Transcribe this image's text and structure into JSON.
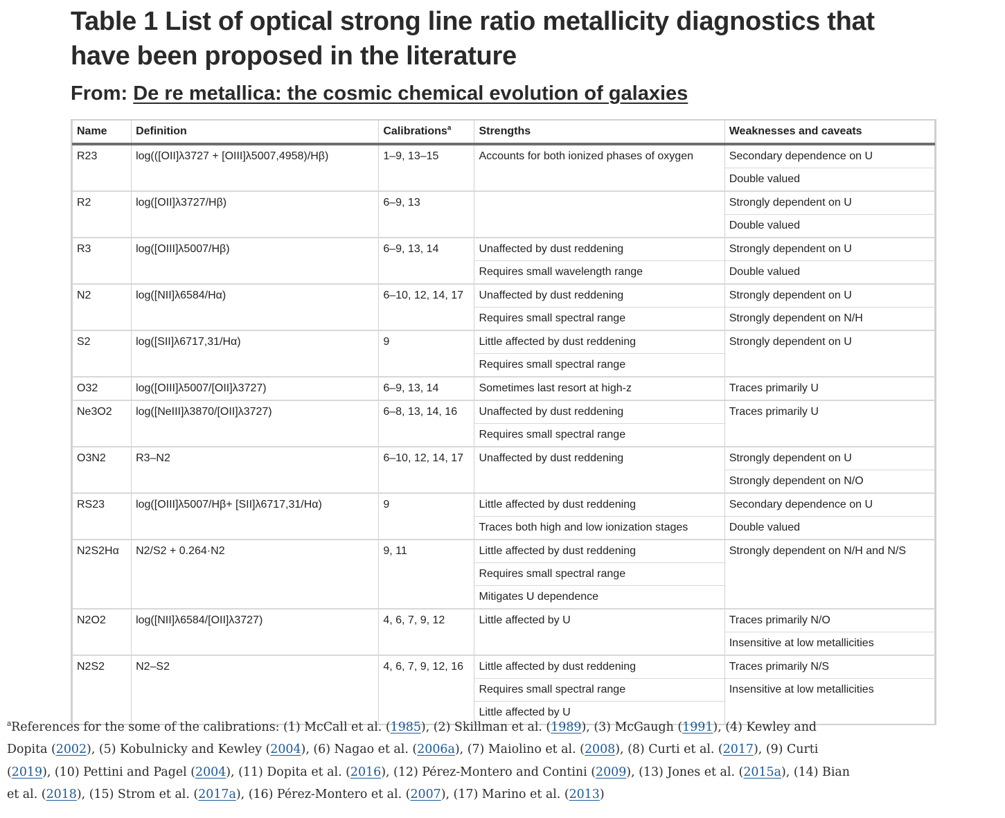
{
  "title": "Table 1 List of optical strong line ratio metallicity diagnostics that have been proposed in the literature",
  "from_label": "From:",
  "from_link": "De re metallica: the cosmic chemical evolution of galaxies",
  "columns": [
    "Name",
    "Definition",
    "Calibrations",
    "Strengths",
    "Weaknesses and caveats"
  ],
  "calibrations_marker": "a",
  "rows": [
    {
      "name": "R23",
      "definition": "log(([OII]λ3727 + [OIII]λ5007,4958)/Hβ)",
      "calibrations": "1–9, 13–15",
      "strengths": [
        "Accounts for both ionized phases of oxygen"
      ],
      "weaknesses": [
        "Secondary dependence on U",
        "Double valued"
      ]
    },
    {
      "name": "R2",
      "definition": "log([OII]λ3727/Hβ)",
      "calibrations": "6–9, 13",
      "strengths": [],
      "weaknesses": [
        "Strongly dependent on U",
        "Double valued"
      ]
    },
    {
      "name": "R3",
      "definition": "log([OIII]λ5007/Hβ)",
      "calibrations": "6–9, 13, 14",
      "strengths": [
        "Unaffected by dust reddening",
        "Requires small wavelength range"
      ],
      "weaknesses": [
        "Strongly dependent on U",
        "Double valued"
      ]
    },
    {
      "name": "N2",
      "definition": "log([NII]λ6584/Hα)",
      "calibrations": "6–10, 12, 14, 17",
      "strengths": [
        "Unaffected by dust reddening",
        "Requires small spectral range"
      ],
      "weaknesses": [
        "Strongly dependent on U",
        "Strongly dependent on N/H"
      ]
    },
    {
      "name": "S2",
      "definition": "log([SII]λ6717,31/Hα)",
      "calibrations": "9",
      "strengths": [
        "Little affected by dust reddening",
        "Requires small spectral range"
      ],
      "weaknesses": [
        "Strongly dependent on U"
      ]
    },
    {
      "name": "O32",
      "definition": "log([OIII]λ5007/[OII]λ3727)",
      "calibrations": "6–9, 13, 14",
      "strengths": [
        "Sometimes last resort at high-z"
      ],
      "weaknesses": [
        "Traces primarily U"
      ]
    },
    {
      "name": "Ne3O2",
      "definition": "log([NeIII]λ3870/[OII]λ3727)",
      "calibrations": "6–8, 13, 14, 16",
      "strengths": [
        "Unaffected by dust reddening",
        "Requires small spectral range"
      ],
      "weaknesses": [
        "Traces primarily U"
      ]
    },
    {
      "name": "O3N2",
      "definition": "R3–N2",
      "calibrations": "6–10, 12, 14, 17",
      "strengths": [
        "Unaffected by dust reddening"
      ],
      "weaknesses": [
        "Strongly dependent on U",
        "Strongly dependent on N/O"
      ]
    },
    {
      "name": "RS23",
      "definition": "log([OIII]λ5007/Hβ+ [SII]λ6717,31/Hα)",
      "calibrations": "9",
      "strengths": [
        "Little affected by dust reddening",
        "Traces both high and low ionization stages"
      ],
      "weaknesses": [
        "Secondary dependence on U",
        "Double valued"
      ]
    },
    {
      "name": "N2S2Hα",
      "definition": "N2/S2 + 0.264·N2",
      "calibrations": "9, 11",
      "strengths": [
        "Little affected by dust reddening",
        "Requires small spectral range",
        "Mitigates U dependence"
      ],
      "weaknesses": [
        "Strongly dependent on N/H and N/S"
      ]
    },
    {
      "name": "N2O2",
      "definition": "log([NII]λ6584/[OII]λ3727)",
      "calibrations": "4, 6, 7, 9, 12",
      "strengths": [
        "Little affected by U"
      ],
      "weaknesses": [
        "Traces primarily N/O",
        "Insensitive at low metallicities"
      ]
    },
    {
      "name": "N2S2",
      "definition": "N2–S2",
      "calibrations": "4, 6, 7, 9, 12, 16",
      "strengths": [
        "Little affected by dust reddening",
        "Requires small spectral range",
        "Little affected by U"
      ],
      "weaknesses": [
        "Traces primarily N/S",
        "Insensitive at low metallicities"
      ]
    }
  ],
  "footnote": {
    "marker": "a",
    "intro": "References for the some of the calibrations: ",
    "refs": [
      {
        "num": "(1)",
        "authors": "McCall et al.",
        "year": "1985"
      },
      {
        "num": "(2)",
        "authors": "Skillman et al.",
        "year": "1989"
      },
      {
        "num": "(3)",
        "authors": "McGaugh",
        "year": "1991"
      },
      {
        "num": "(4)",
        "authors": "Kewley and Dopita",
        "year": "2002"
      },
      {
        "num": "(5)",
        "authors": "Kobulnicky and Kewley",
        "year": "2004"
      },
      {
        "num": "(6)",
        "authors": "Nagao et al.",
        "year": "2006a"
      },
      {
        "num": "(7)",
        "authors": "Maiolino et al.",
        "year": "2008"
      },
      {
        "num": "(8)",
        "authors": "Curti et al.",
        "year": "2017"
      },
      {
        "num": "(9)",
        "authors": "Curti",
        "year": "2019"
      },
      {
        "num": "(10)",
        "authors": "Pettini and Pagel",
        "year": "2004"
      },
      {
        "num": "(11)",
        "authors": "Dopita et al.",
        "year": "2016"
      },
      {
        "num": "(12)",
        "authors": "Pérez-Montero and Contini",
        "year": "2009"
      },
      {
        "num": "(13)",
        "authors": "Jones et al.",
        "year": "2015a"
      },
      {
        "num": "(14)",
        "authors": "Bian et al.",
        "year": "2018"
      },
      {
        "num": "(15)",
        "authors": "Strom et al.",
        "year": "2017a"
      },
      {
        "num": "(16)",
        "authors": "Pérez-Montero et al.",
        "year": "2007"
      },
      {
        "num": "(17)",
        "authors": "Marino et al.",
        "year": "2013"
      }
    ]
  }
}
